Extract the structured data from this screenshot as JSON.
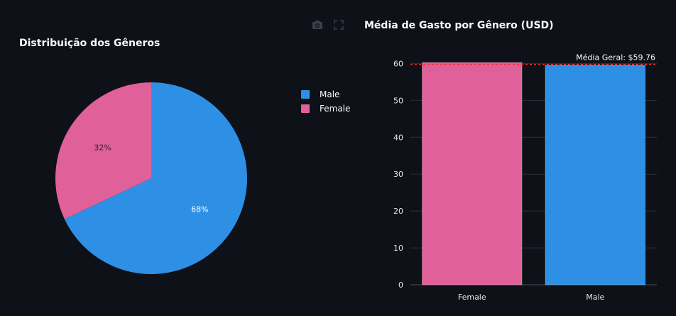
{
  "colors": {
    "male": "#2e90e5",
    "female": "#e0609a",
    "background": "#0e1117",
    "reference_line": "#ff2b2b"
  },
  "modebar": {
    "icons": [
      "camera-icon",
      "fullscreen-icon"
    ]
  },
  "chart_data": [
    {
      "type": "pie",
      "title": "Distribuição dos Gêneros",
      "slices": [
        {
          "label": "Male",
          "value": 68,
          "text": "68%",
          "color": "#2e90e5"
        },
        {
          "label": "Female",
          "value": 32,
          "text": "32%",
          "color": "#e0609a"
        }
      ],
      "legend": {
        "position": "right",
        "entries": [
          "Male",
          "Female"
        ]
      }
    },
    {
      "type": "bar",
      "title": "Média de Gasto por Gênero (USD)",
      "categories": [
        "Female",
        "Male"
      ],
      "values": [
        60.25,
        59.54
      ],
      "colors": [
        "#e0609a",
        "#2e90e5"
      ],
      "ylim": [
        0,
        62
      ],
      "yticks": [
        0,
        10,
        20,
        30,
        40,
        50,
        60
      ],
      "grid": true,
      "reference_line": {
        "value": 59.76,
        "label": "Média Geral: $59.76",
        "style": "dashed",
        "color": "#ff2b2b"
      }
    }
  ]
}
